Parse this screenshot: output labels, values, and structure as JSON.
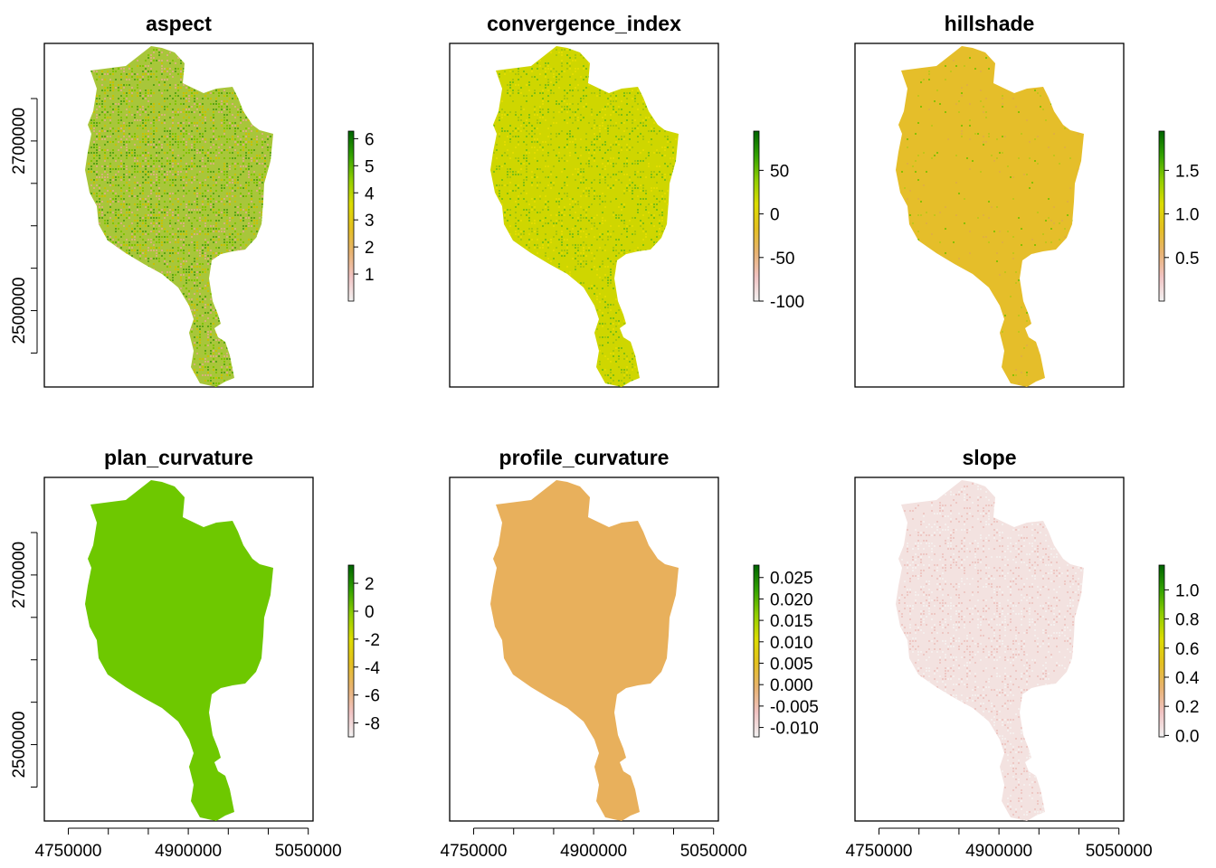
{
  "figure": {
    "x_axis_ticks": [
      4750000,
      4800000,
      4850000,
      4900000,
      4950000,
      5000000,
      5050000
    ],
    "x_axis_labels": [
      "4750000",
      "4900000",
      "5050000"
    ],
    "y_axis_ticks": [
      2450000,
      2500000,
      2550000,
      2600000,
      2650000,
      2700000,
      2750000
    ],
    "y_axis_labels": [
      "2500000",
      "2700000"
    ],
    "colors": {
      "ramp": [
        "#f2f2f2",
        "#f1c3c3",
        "#e8b371",
        "#e4c020",
        "#dcdc00",
        "#8fce00",
        "#32a200",
        "#006400"
      ]
    }
  },
  "chart_data": [
    {
      "type": "heatmap",
      "title": "aspect",
      "legend_ticks": [
        1,
        2,
        3,
        4,
        5,
        6
      ],
      "legend_labels": [
        "1",
        "2",
        "3",
        "4",
        "5",
        "6"
      ],
      "legend_range": [
        0,
        6.28
      ],
      "fill_base": "#a8c63a",
      "texture": [
        "#5aa514",
        "#d7b07a",
        "#c9c100",
        "#7fc400"
      ],
      "texture_density": 0.5
    },
    {
      "type": "heatmap",
      "title": "convergence_index",
      "legend_ticks": [
        50,
        0,
        -50,
        -100
      ],
      "legend_labels": [
        "50",
        "0",
        "-50",
        "-100"
      ],
      "legend_range": [
        -100,
        95
      ],
      "fill_base": "#cfd600",
      "texture": [
        "#7fbf10",
        "#a9c60a",
        "#e2dc00"
      ],
      "texture_density": 0.3
    },
    {
      "type": "heatmap",
      "title": "hillshade",
      "legend_ticks": [
        0.5,
        1.0,
        1.5
      ],
      "legend_labels": [
        "0.5",
        "1.0",
        "1.5"
      ],
      "legend_range": [
        0,
        1.95
      ],
      "fill_base": "#e5be2a",
      "texture": [
        "#c2c51a",
        "#88c000",
        "#e0b040"
      ],
      "texture_density": 0.04
    },
    {
      "type": "heatmap",
      "title": "plan_curvature",
      "legend_ticks": [
        2,
        0,
        -2,
        -4,
        -6,
        -8
      ],
      "legend_labels": [
        "2",
        "0",
        "-2",
        "-4",
        "-6",
        "-8"
      ],
      "legend_range": [
        -9,
        3.3
      ],
      "fill_base": "#6ec800",
      "texture": [],
      "texture_density": 0
    },
    {
      "type": "heatmap",
      "title": "profile_curvature",
      "legend_ticks": [
        0.025,
        0.02,
        0.015,
        0.01,
        0.005,
        0.0,
        -0.005,
        -0.01
      ],
      "legend_labels": [
        "0.025",
        "0.020",
        "0.015",
        "0.010",
        "0.005",
        "0.000",
        "-0.005",
        "-0.010"
      ],
      "legend_range": [
        -0.0122,
        0.0279
      ],
      "fill_base": "#e8b05c",
      "texture": [],
      "texture_density": 0
    },
    {
      "type": "heatmap",
      "title": "slope",
      "legend_ticks": [
        1.0,
        0.8,
        0.6,
        0.4,
        0.2,
        0.0
      ],
      "legend_labels": [
        "1.0",
        "0.8",
        "0.6",
        "0.4",
        "0.2",
        "0.0"
      ],
      "legend_range": [
        -0.01,
        1.17
      ],
      "fill_base": "#f3e2e0",
      "texture": [
        "#eec8c4",
        "#f5eeec"
      ],
      "texture_density": 0.3
    }
  ]
}
